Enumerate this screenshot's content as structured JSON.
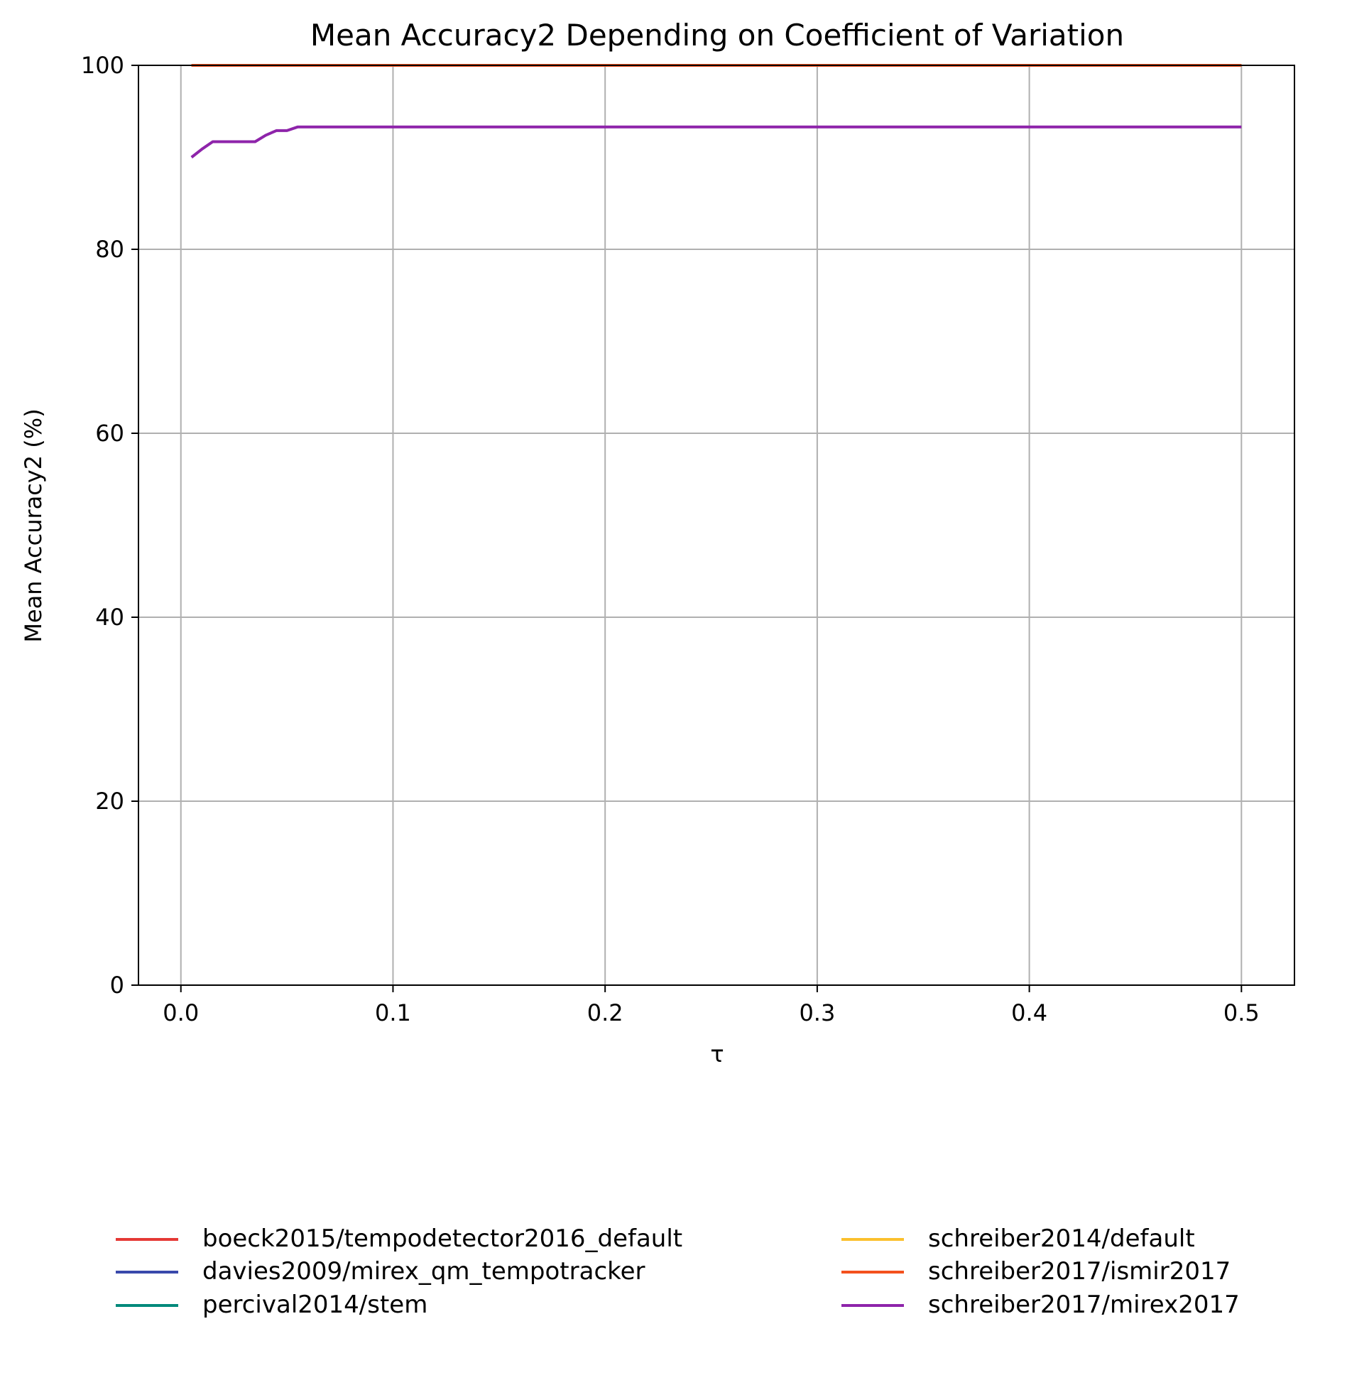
{
  "chart_data": {
    "type": "line",
    "title": "Mean Accuracy2 Depending on Coefficient of Variation",
    "xlabel": "τ",
    "ylabel": "Mean Accuracy2 (%)",
    "xlim": [
      -0.02,
      0.525
    ],
    "ylim": [
      0,
      100
    ],
    "x_ticks": [
      0.0,
      0.1,
      0.2,
      0.3,
      0.4,
      0.5
    ],
    "x_tick_labels": [
      "0.0",
      "0.1",
      "0.2",
      "0.3",
      "0.4",
      "0.5"
    ],
    "y_ticks": [
      0,
      20,
      40,
      60,
      80,
      100
    ],
    "y_tick_labels": [
      "0",
      "20",
      "40",
      "60",
      "80",
      "100"
    ],
    "grid": true,
    "legend_position": "below plot, two columns",
    "series": [
      {
        "name": "boeck2015/tempodetector2016_default",
        "color": "#e53935",
        "x": [
          0.005,
          0.5
        ],
        "values": [
          100,
          100
        ]
      },
      {
        "name": "davies2009/mirex_qm_tempotracker",
        "color": "#3949ab",
        "x": [
          0.005,
          0.5
        ],
        "values": [
          100,
          100
        ]
      },
      {
        "name": "percival2014/stem",
        "color": "#00897b",
        "x": [
          0.005,
          0.5
        ],
        "values": [
          100,
          100
        ]
      },
      {
        "name": "schreiber2014/default",
        "color": "#fbc02d",
        "x": [
          0.005,
          0.5
        ],
        "values": [
          100,
          100
        ]
      },
      {
        "name": "schreiber2017/ismir2017",
        "color": "#f4511e",
        "x": [
          0.005,
          0.5
        ],
        "values": [
          100,
          100
        ]
      },
      {
        "name": "schreiber2017/mirex2017",
        "color": "#8e24aa",
        "x": [
          0.005,
          0.01,
          0.015,
          0.02,
          0.025,
          0.03,
          0.035,
          0.04,
          0.045,
          0.05,
          0.055,
          0.06,
          0.1,
          0.2,
          0.3,
          0.4,
          0.5
        ],
        "values": [
          90.0,
          90.9,
          91.7,
          91.7,
          91.7,
          91.7,
          91.7,
          92.4,
          92.9,
          92.9,
          93.3,
          93.3,
          93.3,
          93.3,
          93.3,
          93.3,
          93.3
        ]
      }
    ]
  }
}
